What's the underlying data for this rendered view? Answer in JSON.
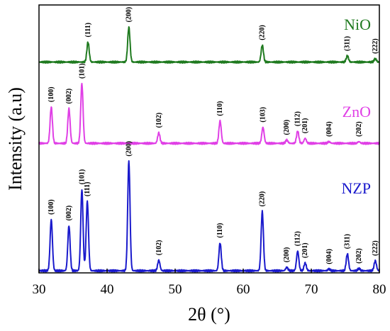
{
  "chart_data": {
    "type": "line",
    "xlabel": "2θ (°)",
    "ylabel": "Intensity (a.u)",
    "xlim": [
      30,
      80
    ],
    "xticks": [
      30,
      40,
      50,
      60,
      70,
      80
    ],
    "y_ticks_shown": false,
    "grid": false,
    "series": [
      {
        "name": "NiO",
        "color": "#1f7a1f",
        "baseline_level": 0.755,
        "peaks": [
          {
            "x": 37.2,
            "height": 0.072,
            "hkl": "(111)"
          },
          {
            "x": 43.2,
            "height": 0.126,
            "hkl": "(200)"
          },
          {
            "x": 62.8,
            "height": 0.061,
            "hkl": "(220)"
          },
          {
            "x": 75.3,
            "height": 0.022,
            "hkl": "(311)"
          },
          {
            "x": 79.4,
            "height": 0.012,
            "hkl": "(222)"
          }
        ]
      },
      {
        "name": "ZnO",
        "color": "#e040e6",
        "baseline_level": 0.461,
        "peaks": [
          {
            "x": 31.8,
            "height": 0.131,
            "hkl": "(100)"
          },
          {
            "x": 34.4,
            "height": 0.125,
            "hkl": "(002)"
          },
          {
            "x": 36.3,
            "height": 0.216,
            "hkl": "(101)"
          },
          {
            "x": 47.6,
            "height": 0.038,
            "hkl": "(102)"
          },
          {
            "x": 56.6,
            "height": 0.081,
            "hkl": "(110)"
          },
          {
            "x": 62.9,
            "height": 0.058,
            "hkl": "(103)"
          },
          {
            "x": 66.4,
            "height": 0.012,
            "hkl": "(200)"
          },
          {
            "x": 68.0,
            "height": 0.044,
            "hkl": "(112)"
          },
          {
            "x": 69.1,
            "height": 0.018,
            "hkl": "(201)"
          },
          {
            "x": 72.6,
            "height": 0.006,
            "hkl": "(004)"
          },
          {
            "x": 77.0,
            "height": 0.006,
            "hkl": "(202)"
          }
        ]
      },
      {
        "name": "NZP",
        "color": "#1a1acc",
        "baseline_level": 0.0,
        "peaks": [
          {
            "x": 31.8,
            "height": 0.185,
            "hkl": "(100)"
          },
          {
            "x": 34.4,
            "height": 0.163,
            "hkl": "(002)"
          },
          {
            "x": 36.3,
            "height": 0.294,
            "hkl": "(101)"
          },
          {
            "x": 37.1,
            "height": 0.251,
            "hkl": "(111)"
          },
          {
            "x": 43.2,
            "height": 0.396,
            "hkl": "(200)"
          },
          {
            "x": 47.6,
            "height": 0.038,
            "hkl": "(102)"
          },
          {
            "x": 56.6,
            "height": 0.101,
            "hkl": "(110)"
          },
          {
            "x": 62.8,
            "height": 0.214,
            "hkl": "(220)"
          },
          {
            "x": 66.4,
            "height": 0.012,
            "hkl": "(200)"
          },
          {
            "x": 68.0,
            "height": 0.071,
            "hkl": "(112)"
          },
          {
            "x": 69.1,
            "height": 0.028,
            "hkl": "(201)"
          },
          {
            "x": 72.6,
            "height": 0.006,
            "hkl": "(004)"
          },
          {
            "x": 75.3,
            "height": 0.061,
            "hkl": "(311)"
          },
          {
            "x": 77.0,
            "height": 0.008,
            "hkl": "(202)"
          },
          {
            "x": 79.4,
            "height": 0.036,
            "hkl": "(222)"
          }
        ]
      }
    ]
  }
}
